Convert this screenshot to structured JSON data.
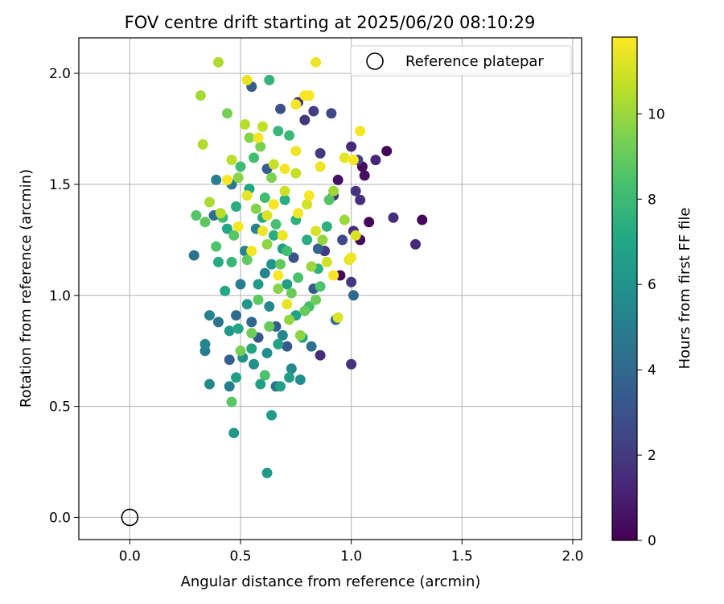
{
  "chart_data": {
    "type": "scatter",
    "title": "FOV centre drift starting at 2025/06/20 08:10:29",
    "xlabel": "Angular distance from reference (arcmin)",
    "ylabel": "Rotation from reference (arcmin)",
    "xlim": [
      -0.23,
      2.04
    ],
    "ylim": [
      -0.1,
      2.16
    ],
    "xticks": [
      0.0,
      0.5,
      1.0,
      1.5,
      2.0
    ],
    "xtick_labels": [
      "0.0",
      "0.5",
      "1.0",
      "1.5",
      "2.0"
    ],
    "yticks": [
      0.0,
      0.5,
      1.0,
      1.5,
      2.0
    ],
    "ytick_labels": [
      "0.0",
      "0.5",
      "1.0",
      "1.5",
      "2.0"
    ],
    "grid": true,
    "legend": {
      "placement": "top-right",
      "entries": [
        "Reference platepar"
      ]
    },
    "reference_point": {
      "x": 0.0,
      "y": 0.0,
      "label": "Reference platepar"
    },
    "colorbar": {
      "label": "Hours from first FF file",
      "colormap": "viridis",
      "range": [
        0,
        11.8
      ],
      "ticks": [
        0,
        2,
        4,
        6,
        8,
        10
      ],
      "tick_labels": [
        "0",
        "2",
        "4",
        "6",
        "8",
        "10"
      ]
    },
    "series": [
      {
        "points": [
          [
            1.16,
            1.65,
            0.1
          ],
          [
            1.05,
            1.58,
            0.3
          ],
          [
            1.08,
            1.33,
            0.2
          ],
          [
            1.32,
            1.34,
            0.2
          ],
          [
            1.04,
            1.25,
            0.3
          ],
          [
            0.95,
            1.09,
            0.2
          ],
          [
            1.06,
            1.54,
            0.5
          ],
          [
            0.94,
            1.52,
            0.5
          ],
          [
            1.0,
            1.67,
            1.4
          ],
          [
            1.11,
            1.61,
            1.3
          ],
          [
            1.19,
            1.35,
            1.5
          ],
          [
            1.29,
            1.23,
            1.4
          ],
          [
            1.04,
            1.43,
            1.6
          ],
          [
            1.02,
            1.47,
            1.8
          ],
          [
            1.01,
            1.29,
            1.6
          ],
          [
            0.86,
            1.64,
            1.9
          ],
          [
            0.79,
            1.79,
            1.9
          ],
          [
            0.76,
            1.87,
            1.6
          ],
          [
            0.86,
            0.73,
            1.4
          ],
          [
            1.0,
            0.69,
            1.7
          ],
          [
            1.0,
            1.06,
            1.9
          ],
          [
            0.88,
            1.2,
            2.0
          ],
          [
            0.92,
            1.45,
            1.8
          ],
          [
            0.83,
            1.83,
            2.1
          ],
          [
            0.96,
            1.25,
            2.6
          ],
          [
            0.91,
            1.82,
            2.6
          ],
          [
            1.03,
            1.61,
            2.3
          ],
          [
            0.68,
            1.84,
            2.8
          ],
          [
            0.55,
            1.94,
            3.3
          ],
          [
            0.71,
            0.77,
            3.2
          ],
          [
            0.66,
            0.86,
            3.5
          ],
          [
            0.83,
            1.03,
            3.4
          ],
          [
            0.45,
            0.71,
            3.6
          ],
          [
            0.58,
            0.81,
            3.2
          ],
          [
            0.62,
            1.57,
            3.5
          ],
          [
            0.74,
            1.17,
            3.0
          ],
          [
            0.85,
            1.21,
            3.7
          ],
          [
            1.01,
            1.0,
            4.0
          ],
          [
            0.93,
            0.89,
            4.3
          ],
          [
            0.82,
            0.77,
            4.4
          ],
          [
            0.66,
            0.59,
            4.5
          ],
          [
            0.55,
            0.88,
            3.9
          ],
          [
            0.48,
            0.91,
            4.1
          ],
          [
            0.29,
            1.18,
            4.6
          ],
          [
            0.38,
            1.36,
            4.2
          ],
          [
            0.46,
            1.5,
            4.8
          ],
          [
            0.39,
            1.52,
            5.0
          ],
          [
            0.36,
            0.91,
            5.2
          ],
          [
            0.4,
            0.88,
            4.6
          ],
          [
            0.34,
            0.75,
            5.0
          ],
          [
            0.34,
            0.78,
            5.3
          ],
          [
            0.45,
            0.59,
            5.1
          ],
          [
            0.36,
            0.6,
            5.5
          ],
          [
            0.5,
            1.05,
            5.0
          ],
          [
            0.52,
            1.2,
            5.1
          ],
          [
            0.57,
            1.3,
            5.2
          ],
          [
            0.61,
            1.1,
            5.3
          ],
          [
            0.63,
            0.95,
            5.5
          ],
          [
            0.69,
            0.82,
            5.4
          ],
          [
            0.73,
            0.67,
            5.6
          ],
          [
            0.77,
            0.62,
            5.7
          ],
          [
            0.62,
            0.74,
            5.8
          ],
          [
            0.56,
            0.69,
            5.9
          ],
          [
            0.51,
            0.72,
            6.0
          ],
          [
            0.47,
            0.38,
            6.2
          ],
          [
            0.64,
            0.46,
            6.4
          ],
          [
            0.62,
            0.2,
            6.3
          ],
          [
            0.48,
            0.63,
            6.6
          ],
          [
            0.59,
            0.6,
            6.5
          ],
          [
            0.68,
            0.59,
            6.7
          ],
          [
            0.72,
            0.63,
            6.6
          ],
          [
            0.45,
            0.84,
            6.3
          ],
          [
            0.53,
            0.96,
            6.2
          ],
          [
            0.58,
            1.05,
            6.4
          ],
          [
            0.64,
            1.14,
            6.1
          ],
          [
            0.69,
            1.21,
            6.5
          ],
          [
            0.71,
            1.05,
            6.6
          ],
          [
            0.75,
            0.91,
            6.7
          ],
          [
            0.78,
            0.81,
            6.9
          ],
          [
            0.67,
            0.78,
            6.8
          ],
          [
            0.55,
            0.76,
            6.9
          ],
          [
            0.49,
            0.85,
            7.0
          ],
          [
            0.43,
            1.02,
            7.1
          ],
          [
            0.4,
            1.15,
            7.2
          ],
          [
            0.44,
            1.3,
            7.0
          ],
          [
            0.48,
            1.4,
            7.3
          ],
          [
            0.54,
            1.48,
            7.1
          ],
          [
            0.6,
            1.35,
            7.2
          ],
          [
            0.65,
            1.27,
            7.4
          ],
          [
            0.7,
            1.43,
            7.3
          ],
          [
            0.75,
            1.34,
            7.5
          ],
          [
            0.8,
            1.25,
            7.4
          ],
          [
            0.85,
            1.12,
            7.6
          ],
          [
            0.89,
            1.31,
            7.5
          ],
          [
            0.63,
            1.97,
            7.7
          ],
          [
            0.67,
            1.74,
            7.8
          ],
          [
            0.72,
            1.72,
            7.9
          ],
          [
            0.46,
            1.15,
            7.8
          ],
          [
            0.42,
            1.35,
            8.0
          ],
          [
            0.5,
            1.58,
            8.1
          ],
          [
            0.56,
            1.62,
            8.2
          ],
          [
            0.61,
            1.44,
            8.1
          ],
          [
            0.66,
            1.32,
            8.3
          ],
          [
            0.71,
            1.2,
            8.2
          ],
          [
            0.76,
            1.08,
            8.4
          ],
          [
            0.81,
            0.95,
            8.3
          ],
          [
            0.86,
            1.04,
            8.5
          ],
          [
            0.9,
            1.43,
            8.6
          ],
          [
            0.61,
            0.64,
            8.4
          ],
          [
            0.46,
            0.52,
            8.7
          ],
          [
            0.39,
            1.22,
            8.5
          ],
          [
            0.3,
            1.36,
            8.6
          ],
          [
            0.34,
            1.33,
            8.8
          ],
          [
            0.47,
            1.27,
            8.7
          ],
          [
            0.53,
            1.16,
            8.9
          ],
          [
            0.58,
            0.98,
            8.8
          ],
          [
            0.63,
            0.86,
            9.0
          ],
          [
            0.68,
            1.14,
            8.9
          ],
          [
            0.73,
            1.01,
            9.1
          ],
          [
            0.79,
            0.93,
            9.0
          ],
          [
            0.84,
            0.98,
            9.2
          ],
          [
            0.55,
            0.83,
            9.2
          ],
          [
            0.5,
            0.75,
            9.3
          ],
          [
            0.44,
            1.82,
            9.3
          ],
          [
            0.59,
            1.67,
            9.4
          ],
          [
            0.64,
            1.53,
            9.5
          ],
          [
            0.54,
            1.71,
            9.6
          ],
          [
            0.49,
            1.53,
            9.7
          ],
          [
            0.57,
            1.39,
            9.6
          ],
          [
            0.62,
            1.23,
            9.8
          ],
          [
            0.67,
            1.03,
            9.7
          ],
          [
            0.72,
            0.89,
            9.9
          ],
          [
            0.77,
            0.82,
            9.8
          ],
          [
            0.82,
            1.13,
            10.0
          ],
          [
            0.87,
            1.25,
            9.9
          ],
          [
            0.92,
            1.47,
            10.1
          ],
          [
            0.97,
            1.34,
            10.0
          ],
          [
            0.4,
            2.05,
            10.3
          ],
          [
            0.32,
            1.9,
            10.2
          ],
          [
            0.33,
            1.68,
            10.4
          ],
          [
            0.36,
            1.42,
            10.3
          ],
          [
            0.41,
            1.37,
            10.5
          ],
          [
            0.46,
            1.61,
            10.6
          ],
          [
            0.52,
            1.77,
            10.5
          ],
          [
            0.6,
            1.76,
            10.7
          ],
          [
            0.65,
            1.59,
            10.8
          ],
          [
            0.7,
            1.47,
            10.9
          ],
          [
            0.75,
            1.55,
            10.8
          ],
          [
            0.8,
            1.41,
            11.0
          ],
          [
            0.84,
            1.29,
            11.1
          ],
          [
            0.89,
            1.15,
            11.0
          ],
          [
            0.94,
            0.9,
            11.2
          ],
          [
            0.99,
            1.16,
            11.3
          ],
          [
            1.02,
            1.27,
            11.2
          ],
          [
            0.97,
            1.62,
            11.4
          ],
          [
            0.84,
            2.05,
            11.5
          ],
          [
            0.53,
            1.97,
            11.4
          ],
          [
            0.75,
            1.86,
            11.6
          ],
          [
            0.79,
            1.9,
            11.7
          ],
          [
            0.81,
            1.9,
            11.7
          ],
          [
            0.75,
            1.65,
            11.5
          ],
          [
            0.7,
            1.57,
            11.6
          ],
          [
            0.65,
            1.41,
            11.7
          ],
          [
            0.6,
            1.29,
            11.5
          ],
          [
            0.55,
            1.2,
            11.6
          ],
          [
            0.67,
            1.09,
            11.7
          ],
          [
            0.71,
            0.96,
            11.4
          ],
          [
            0.76,
            1.37,
            11.6
          ],
          [
            0.81,
            1.45,
            11.7
          ],
          [
            0.86,
            1.58,
            11.5
          ],
          [
            1.04,
            1.74,
            11.6
          ],
          [
            1.01,
            1.61,
            11.7
          ],
          [
            1.0,
            1.17,
            11.5
          ],
          [
            0.92,
            1.09,
            11.7
          ],
          [
            0.53,
            1.45,
            11.3
          ],
          [
            0.49,
            1.31,
            11.6
          ],
          [
            0.44,
            1.52,
            11.7
          ],
          [
            0.58,
            1.71,
            11.6
          ],
          [
            0.62,
            1.36,
            11.2
          ],
          [
            0.69,
            1.27,
            11.5
          ]
        ]
      }
    ]
  }
}
